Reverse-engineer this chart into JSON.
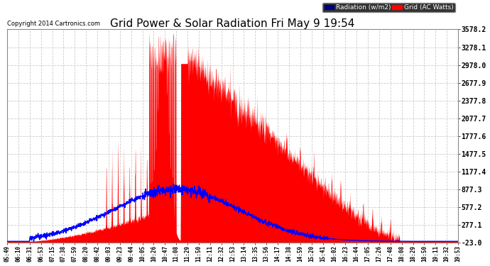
{
  "title": "Grid Power & Solar Radiation Fri May 9 19:54",
  "copyright": "Copyright 2014 Cartronics.com",
  "ymin": -23.0,
  "ymax": 3578.2,
  "yticks": [
    -23.0,
    277.1,
    577.2,
    877.3,
    1177.4,
    1477.5,
    1777.6,
    2077.7,
    2377.8,
    2677.9,
    2978.0,
    3278.1,
    3578.2
  ],
  "bg_color": "#ffffff",
  "plot_bg_color": "#ffffff",
  "grid_color": "#cccccc",
  "red_fill_color": "#ff0000",
  "blue_line_color": "#0000ff",
  "xtick_labels": [
    "05:49",
    "06:10",
    "06:31",
    "06:53",
    "07:15",
    "07:38",
    "07:59",
    "08:20",
    "08:42",
    "09:03",
    "09:23",
    "09:44",
    "10:05",
    "10:26",
    "10:47",
    "11:08",
    "11:29",
    "11:50",
    "12:11",
    "12:32",
    "12:53",
    "13:14",
    "13:35",
    "13:56",
    "14:17",
    "14:38",
    "14:59",
    "15:20",
    "15:41",
    "16:02",
    "16:23",
    "16:44",
    "17:05",
    "17:26",
    "17:48",
    "18:08",
    "18:29",
    "18:50",
    "19:11",
    "19:32",
    "19:53"
  ]
}
